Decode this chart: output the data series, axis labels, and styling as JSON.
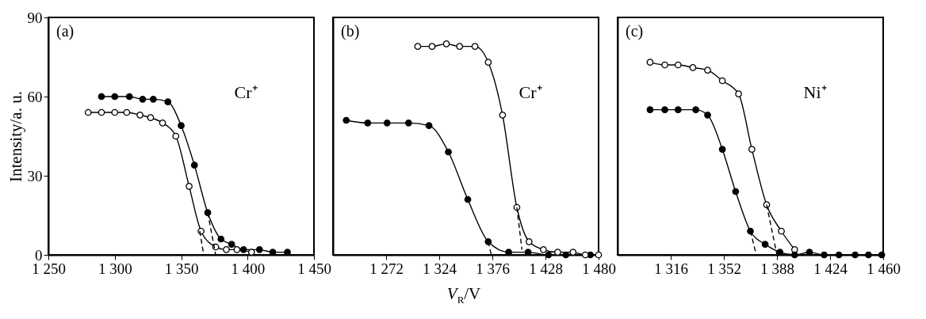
{
  "chart_data": [
    {
      "type": "line",
      "marker": "circle",
      "line_style": "solid",
      "xlim": [
        1250,
        1450
      ],
      "xticks": [
        1250,
        1300,
        1350,
        1400,
        1450
      ],
      "ylim": [
        0,
        90
      ],
      "yticks": [
        0,
        30,
        60,
        90
      ],
      "ylabel": "Intensity/a. u.",
      "annotations": [
        "(a)",
        "Cr⁺"
      ],
      "series": [
        {
          "color": "#000000",
          "x": [
            1290,
            1300,
            1311,
            1321,
            1329,
            1340,
            1350,
            1360,
            1370,
            1380,
            1388,
            1397,
            1409,
            1419,
            1430
          ],
          "values": [
            60,
            60,
            60,
            59,
            59,
            58,
            49,
            34,
            16,
            6,
            4,
            2,
            2,
            1,
            1
          ]
        },
        {
          "color": "#ffffff",
          "x": [
            1280,
            1290,
            1300,
            1309,
            1319,
            1327,
            1336,
            1346,
            1356,
            1365,
            1376,
            1384,
            1392,
            1403
          ],
          "values": [
            54,
            54,
            54,
            54,
            53,
            52,
            50,
            45,
            26,
            9,
            3,
            2,
            2,
            1
          ]
        },
        {
          "marker": "none",
          "line_style": "dashed",
          "x": [
            1364,
            1367
          ],
          "values": [
            9,
            0
          ]
        },
        {
          "marker": "none",
          "line_style": "dashed",
          "x": [
            1370,
            1376
          ],
          "values": [
            16,
            0
          ]
        }
      ]
    },
    {
      "type": "line",
      "marker": "circle",
      "line_style": "solid",
      "xlim": [
        1220,
        1480
      ],
      "xticks": [
        1272,
        1324,
        1376,
        1428,
        1480
      ],
      "ylim": [
        0,
        90
      ],
      "yticks": [
        0,
        30,
        60,
        90
      ],
      "tick_labels": "x",
      "xlabel": "V$_{R}$/V",
      "annotations": [
        "(b)",
        "Cr⁺"
      ],
      "series": [
        {
          "color": "#000000",
          "x": [
            1233,
            1254,
            1273,
            1294,
            1314,
            1333,
            1352,
            1372,
            1392,
            1411,
            1431,
            1448,
            1472
          ],
          "values": [
            51,
            50,
            50,
            50,
            49,
            39,
            21,
            5,
            1,
            1,
            0,
            0,
            0
          ]
        },
        {
          "color": "#ffffff",
          "x": [
            1303,
            1317,
            1331,
            1344,
            1359,
            1372,
            1386,
            1400,
            1412,
            1426,
            1440,
            1455,
            1467,
            1480
          ],
          "values": [
            79,
            79,
            80,
            79,
            79,
            73,
            53,
            18,
            5,
            2,
            1,
            1,
            0,
            0
          ]
        },
        {
          "marker": "none",
          "line_style": "dashed",
          "x": [
            1372,
            1375
          ],
          "values": [
            5,
            0
          ]
        },
        {
          "marker": "none",
          "line_style": "dashed",
          "x": [
            1400,
            1405
          ],
          "values": [
            18,
            2
          ]
        }
      ]
    },
    {
      "type": "line",
      "marker": "circle",
      "line_style": "solid",
      "xlim": [
        1280,
        1460
      ],
      "xticks": [
        1316,
        1352,
        1388,
        1424,
        1460
      ],
      "ylim": [
        0,
        90
      ],
      "yticks": [
        0,
        30,
        60,
        90
      ],
      "tick_labels": "x",
      "annotations": [
        "(c)",
        "Ni⁺"
      ],
      "series": [
        {
          "color": "#ffffff",
          "x": [
            1302,
            1312,
            1321,
            1331,
            1341,
            1351,
            1362,
            1371,
            1381,
            1391,
            1400
          ],
          "values": [
            73,
            72,
            72,
            71,
            70,
            66,
            61,
            40,
            19,
            9,
            2
          ]
        },
        {
          "color": "#000000",
          "x": [
            1302,
            1312,
            1321,
            1333,
            1341,
            1351,
            1360,
            1370,
            1380,
            1390,
            1400,
            1410,
            1420,
            1430,
            1441,
            1450,
            1459
          ],
          "values": [
            55,
            55,
            55,
            55,
            53,
            40,
            24,
            9,
            4,
            1,
            0,
            1,
            0,
            0,
            0,
            0,
            0
          ]
        },
        {
          "marker": "none",
          "line_style": "dashed",
          "x": [
            1370,
            1374
          ],
          "values": [
            9,
            0
          ]
        },
        {
          "marker": "none",
          "line_style": "dashed",
          "x": [
            1381,
            1388
          ],
          "values": [
            19,
            0
          ]
        }
      ]
    }
  ]
}
